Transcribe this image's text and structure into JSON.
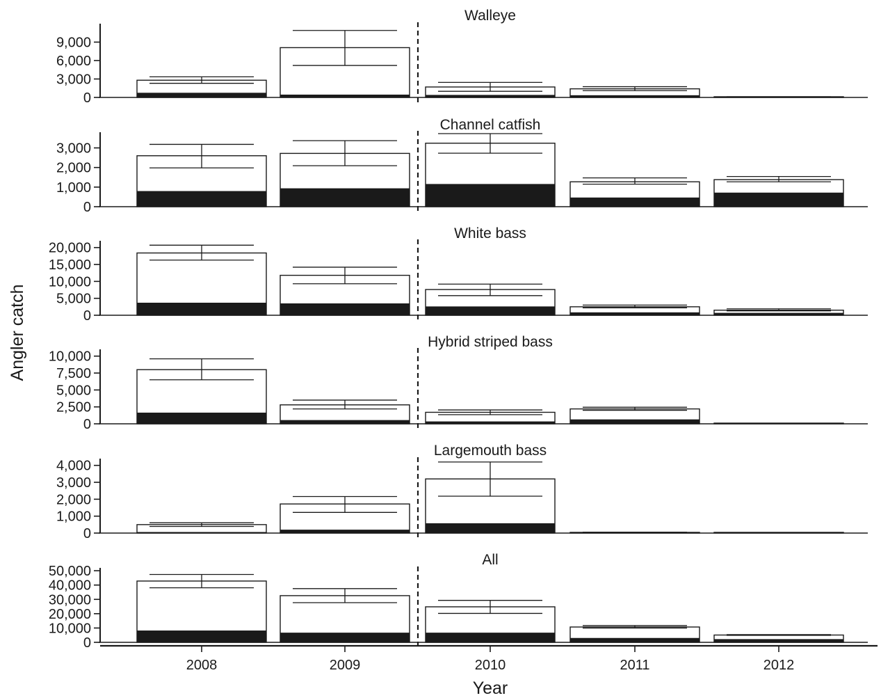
{
  "chart_data": {
    "type": "bar",
    "xlabel": "Year",
    "ylabel": "Angler catch",
    "categories": [
      "2008",
      "2009",
      "2010",
      "2011",
      "2012"
    ],
    "panels": [
      {
        "title": "Walleye",
        "ylim": [
          0,
          12000
        ],
        "yticks": [
          0,
          3000,
          6000,
          9000
        ],
        "ytick_labels": [
          "0",
          "3,000",
          "6,000",
          "9,000"
        ],
        "total": [
          2800,
          8100,
          1700,
          1400,
          80
        ],
        "err_low": [
          2300,
          5200,
          1000,
          1100,
          50
        ],
        "err_high": [
          3350,
          10900,
          2450,
          1750,
          110
        ],
        "harvest": [
          700,
          400,
          350,
          300,
          50
        ]
      },
      {
        "title": "Channel catfish",
        "ylim": [
          0,
          3800
        ],
        "yticks": [
          0,
          1000,
          2000,
          3000
        ],
        "ytick_labels": [
          "0",
          "1,000",
          "2,000",
          "3,000"
        ],
        "total": [
          2600,
          2720,
          3240,
          1270,
          1380
        ],
        "err_low": [
          1980,
          2090,
          2730,
          1150,
          1270
        ],
        "err_high": [
          3180,
          3370,
          3730,
          1470,
          1540
        ],
        "harvest": [
          780,
          920,
          1140,
          450,
          700
        ]
      },
      {
        "title": "White bass",
        "ylim": [
          0,
          22000
        ],
        "yticks": [
          0,
          5000,
          10000,
          15000,
          20000
        ],
        "ytick_labels": [
          "0",
          "5,000",
          "10,000",
          "15,000",
          "20,000"
        ],
        "total": [
          18400,
          11800,
          7600,
          2500,
          1500
        ],
        "err_low": [
          16300,
          9300,
          5800,
          2200,
          1300
        ],
        "err_high": [
          20700,
          14200,
          9200,
          3000,
          1900
        ],
        "harvest": [
          3600,
          3400,
          2500,
          750,
          600
        ]
      },
      {
        "title": "Hybrid striped bass",
        "ylim": [
          0,
          11000
        ],
        "yticks": [
          0,
          2500,
          5000,
          7500,
          10000
        ],
        "ytick_labels": [
          "0",
          "2,500",
          "5,000",
          "7,500",
          "10,000"
        ],
        "total": [
          8000,
          2800,
          1700,
          2200,
          70
        ],
        "err_low": [
          6500,
          2200,
          1350,
          2000,
          50
        ],
        "err_high": [
          9600,
          3500,
          2050,
          2450,
          90
        ],
        "harvest": [
          1600,
          500,
          300,
          600,
          40
        ]
      },
      {
        "title": "Largemouth bass",
        "ylim": [
          0,
          4400
        ],
        "yticks": [
          0,
          1000,
          2000,
          3000,
          4000
        ],
        "ytick_labels": [
          "0",
          "1,000",
          "2,000",
          "3,000",
          "4,000"
        ],
        "total": [
          500,
          1720,
          3200,
          40,
          0
        ],
        "err_low": [
          390,
          1220,
          2180,
          30,
          0
        ],
        "err_high": [
          610,
          2160,
          4200,
          50,
          0
        ],
        "harvest": [
          20,
          180,
          560,
          30,
          0
        ]
      },
      {
        "title": "All",
        "ylim": [
          0,
          52000
        ],
        "yticks": [
          0,
          10000,
          20000,
          30000,
          40000,
          50000
        ],
        "ytick_labels": [
          "0",
          "10,000",
          "20,000",
          "30,000",
          "40,000",
          "50,000"
        ],
        "total": [
          42800,
          32600,
          24800,
          10700,
          5100
        ],
        "err_low": [
          38100,
          27700,
          20200,
          10000,
          4900
        ],
        "err_high": [
          47400,
          37500,
          29300,
          11700,
          5400
        ],
        "harvest": [
          8000,
          6500,
          6500,
          2800,
          2000
        ]
      }
    ],
    "divider_between": [
      "2009",
      "2010"
    ],
    "grid": false,
    "colors": {
      "total": "#ffffff",
      "harvest": "#1a1a1a",
      "stroke": "#1a1a1a"
    }
  }
}
